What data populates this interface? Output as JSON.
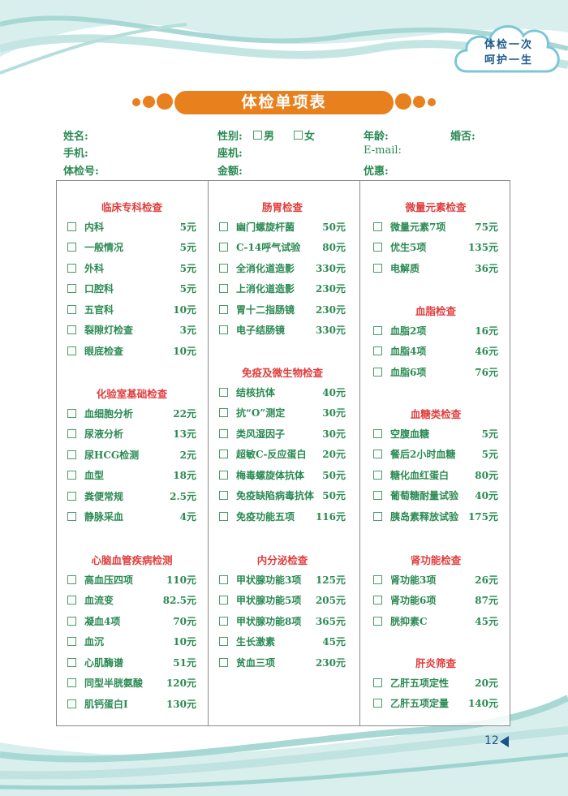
{
  "slogan": {
    "line1": "体检一次",
    "line2": "呵护一生"
  },
  "title": "体检单项表",
  "form": {
    "name": "姓名:",
    "gender": "性别:",
    "male": "男",
    "female": "女",
    "age": "年龄:",
    "marital": "婚否:",
    "mobile": "手机:",
    "landline": "座机:",
    "email": "E-mail:",
    "exam_no": "体检号:",
    "amount": "金额:",
    "discount": "优惠:"
  },
  "columns": [
    {
      "sections": [
        {
          "title": "临床专科检查",
          "items": [
            {
              "name": "内科",
              "price": "5元"
            },
            {
              "name": "一般情况",
              "price": "5元"
            },
            {
              "name": "外科",
              "price": "5元"
            },
            {
              "name": "口腔科",
              "price": "5元"
            },
            {
              "name": "五官科",
              "price": "10元"
            },
            {
              "name": "裂隙灯检查",
              "price": "3元"
            },
            {
              "name": "眼底检查",
              "price": "10元"
            }
          ]
        },
        {
          "title": "化验室基础检查",
          "items": [
            {
              "name": "血细胞分析",
              "price": "22元"
            },
            {
              "name": "尿液分析",
              "price": "13元"
            },
            {
              "name": "尿HCG检测",
              "price": "2元"
            },
            {
              "name": "血型",
              "price": "18元"
            },
            {
              "name": "粪便常规",
              "price": "2.5元"
            },
            {
              "name": "静脉采血",
              "price": "4元"
            }
          ]
        },
        {
          "title": "心脑血管疾病检测",
          "items": [
            {
              "name": "高血压四项",
              "price": "110元"
            },
            {
              "name": "血流变",
              "price": "82.5元"
            },
            {
              "name": "凝血4项",
              "price": "70元"
            },
            {
              "name": "血沉",
              "price": "10元"
            },
            {
              "name": "心肌酶谱",
              "price": "51元"
            },
            {
              "name": "同型半胱氨酸",
              "price": "120元"
            },
            {
              "name": "肌钙蛋白I",
              "price": "130元"
            }
          ]
        }
      ]
    },
    {
      "sections": [
        {
          "title": "肠胃检查",
          "items": [
            {
              "name": "幽门螺旋杆菌",
              "price": "50元"
            },
            {
              "name": "C-14呼气试验",
              "price": "80元"
            },
            {
              "name": "全消化道造影",
              "price": "330元"
            },
            {
              "name": "上消化道造影",
              "price": "230元"
            },
            {
              "name": "胃十二指肠镜",
              "price": "230元"
            },
            {
              "name": "电子结肠镜",
              "price": "330元"
            }
          ]
        },
        {
          "title": "免疫及微生物检查",
          "items": [
            {
              "name": "结核抗体",
              "price": "40元"
            },
            {
              "name": "抗“O”测定",
              "price": "30元"
            },
            {
              "name": "类风湿因子",
              "price": "30元"
            },
            {
              "name": "超敏C-反应蛋白",
              "price": "20元"
            },
            {
              "name": "梅毒螺旋体抗体",
              "price": "50元"
            },
            {
              "name": "免疫缺陷病毒抗体",
              "price": "50元"
            },
            {
              "name": "免疫功能五项",
              "price": "116元"
            }
          ]
        },
        {
          "title": "内分泌检查",
          "items": [
            {
              "name": "甲状腺功能3项",
              "price": "125元"
            },
            {
              "name": "甲状腺功能5项",
              "price": "205元"
            },
            {
              "name": "甲状腺功能8项",
              "price": "365元"
            },
            {
              "name": "生长激素",
              "price": "45元"
            },
            {
              "name": "贫血三项",
              "price": "230元"
            }
          ]
        }
      ]
    },
    {
      "sections": [
        {
          "title": "微量元素检查",
          "items": [
            {
              "name": "微量元素7项",
              "price": "75元"
            },
            {
              "name": "优生5项",
              "price": "135元"
            },
            {
              "name": "电解质",
              "price": "36元"
            }
          ]
        },
        {
          "title": "血脂检查",
          "items": [
            {
              "name": "血脂2项",
              "price": "16元"
            },
            {
              "name": "血脂4项",
              "price": "46元"
            },
            {
              "name": "血脂6项",
              "price": "76元"
            }
          ]
        },
        {
          "title": "血糖类检查",
          "items": [
            {
              "name": "空腹血糖",
              "price": "5元"
            },
            {
              "name": "餐后2小时血糖",
              "price": "5元"
            },
            {
              "name": "糖化血红蛋白",
              "price": "80元"
            },
            {
              "name": "葡萄糖耐量试验",
              "price": "40元"
            },
            {
              "name": "胰岛素释放试验",
              "price": "175元"
            }
          ]
        },
        {
          "title": "肾功能检查",
          "items": [
            {
              "name": "肾功能3项",
              "price": "26元"
            },
            {
              "name": "肾功能6项",
              "price": "87元"
            },
            {
              "name": "胱抑素C",
              "price": "45元"
            }
          ]
        },
        {
          "title": "肝炎筛查",
          "items": [
            {
              "name": "乙肝五项定性",
              "price": "20元"
            },
            {
              "name": "乙肝五项定量",
              "price": "140元"
            }
          ]
        }
      ]
    }
  ],
  "page_number": "12",
  "colors": {
    "accent": "#e8801e",
    "section_title": "#e23c3c",
    "text": "#2a8a52",
    "wave": "#9fd3d0",
    "page_number": "#1d4f8c"
  }
}
